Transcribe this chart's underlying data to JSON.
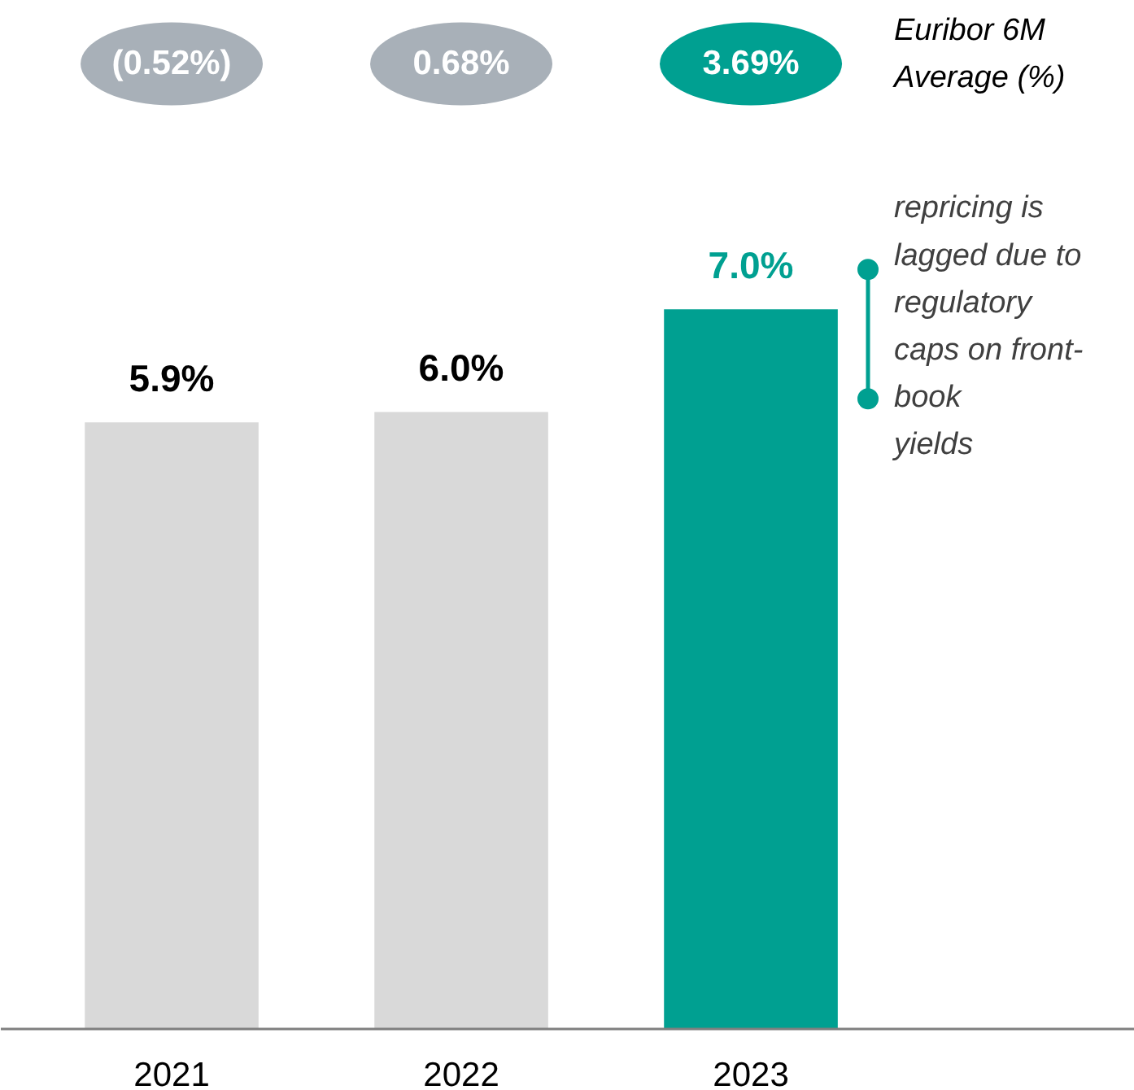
{
  "chart_data": {
    "type": "bar",
    "categories": [
      "2021",
      "2022",
      "2023"
    ],
    "values": [
      5.9,
      6.0,
      7.0
    ],
    "value_labels": [
      "5.9%",
      "6.0%",
      "7.0%"
    ],
    "colors": [
      "#d9d9d9",
      "#d9d9d9",
      "#00a091"
    ],
    "annotations": [
      "(0.52%)",
      "0.68%",
      "3.69%",
      "Euribor 6M\nAverage (%)",
      "repricing is\nlagged due to\nregulatory\ncaps on front-\nbook\nyields"
    ]
  }
}
